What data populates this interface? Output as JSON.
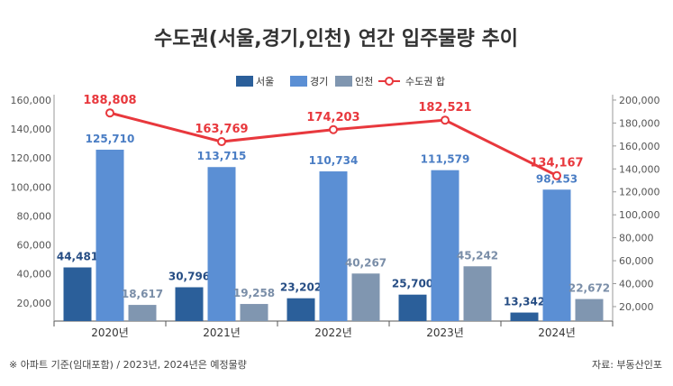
{
  "chart_data": {
    "type": "bar",
    "title": "수도권(서울,경기,인천) 연간 입주물량 추이",
    "categories": [
      "2020년",
      "2021년",
      "2022년",
      "2023년",
      "2024년"
    ],
    "series": [
      {
        "name": "서울",
        "type": "bar",
        "axis": "left",
        "color": "#2b5f9a",
        "label_color": "#264d84",
        "values": [
          44481,
          30796,
          23202,
          25700,
          13342
        ],
        "labels": [
          "44,481",
          "30,796",
          "23,202",
          "25,700",
          "13,342"
        ]
      },
      {
        "name": "경기",
        "type": "bar",
        "axis": "left",
        "color": "#5b8fd4",
        "label_color": "#4a7dc4",
        "values": [
          125710,
          113715,
          110734,
          111579,
          98153
        ],
        "labels": [
          "125,710",
          "113,715",
          "110,734",
          "111,579",
          "98,153"
        ]
      },
      {
        "name": "인천",
        "type": "bar",
        "axis": "left",
        "color": "#8096b0",
        "label_color": "#7a8ea8",
        "values": [
          18617,
          19258,
          40267,
          45242,
          22672
        ],
        "labels": [
          "18,617",
          "19,258",
          "40,267",
          "45,242",
          "22,672"
        ]
      },
      {
        "name": "수도권 합",
        "type": "line",
        "axis": "right",
        "color": "#e8383d",
        "label_color": "#e8383d",
        "values": [
          188808,
          163769,
          174203,
          182521,
          134167
        ],
        "labels": [
          "188,808",
          "163,769",
          "174,203",
          "182,521",
          "134,167"
        ]
      }
    ],
    "left_axis": {
      "ticks": [
        20000,
        40000,
        60000,
        80000,
        100000,
        120000,
        140000,
        160000
      ],
      "tick_labels": [
        "20,000",
        "40,000",
        "60,000",
        "80,000",
        "100,000",
        "120,000",
        "140,000",
        "160,000"
      ]
    },
    "right_axis": {
      "ticks": [
        20000,
        40000,
        60000,
        80000,
        100000,
        120000,
        140000,
        160000,
        180000,
        200000
      ],
      "tick_labels": [
        "20,000",
        "40,000",
        "60,000",
        "80,000",
        "100,000",
        "120,000",
        "140,000",
        "160,000",
        "180,000",
        "200,000"
      ]
    },
    "legend_position": "top-center",
    "grid": false,
    "footnote": "※ 아파트 기준(임대포함) / 2023년, 2024년은 예정물량",
    "source": "자료: 부동산인포"
  }
}
